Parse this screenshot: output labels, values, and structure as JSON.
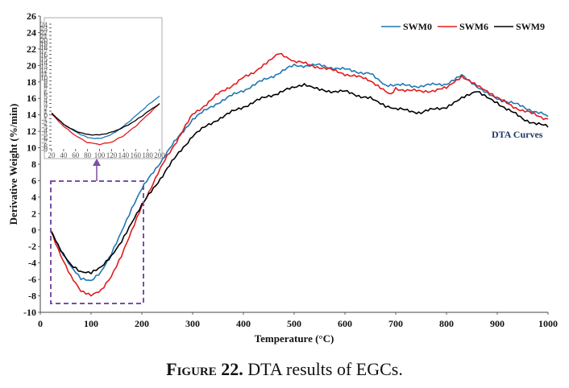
{
  "caption": {
    "figure_label": "Figure 22.",
    "text": " DTA results of EGCs."
  },
  "colors": {
    "SWM0": "#1f77b4",
    "SWM6": "#e31a1c",
    "SWM9": "#000000",
    "box": "#7b4fa6"
  },
  "chart_data": [
    {
      "type": "line",
      "title": "",
      "xlabel": "Temperature (°C)",
      "ylabel": "Derivative Weight (%/min)",
      "xlim": [
        0,
        1000
      ],
      "ylim": [
        -10,
        26
      ],
      "xticks": [
        "0",
        "100",
        "200",
        "300",
        "400",
        "500",
        "600",
        "700",
        "800",
        "900",
        "1000"
      ],
      "yticks": [
        "-10",
        "-8",
        "-6",
        "-4",
        "-2",
        "0",
        "2",
        "4",
        "6",
        "8",
        "10",
        "12",
        "14",
        "16",
        "18",
        "20",
        "22",
        "24",
        "26"
      ],
      "legend": [
        "SWM0",
        "SWM6",
        "SWM9"
      ],
      "legend_position": "top-right",
      "annotation": "DTA Curves",
      "grid": false,
      "series": [
        {
          "name": "SWM0",
          "x": [
            20,
            40,
            60,
            80,
            100,
            120,
            140,
            160,
            180,
            200,
            250,
            300,
            350,
            400,
            450,
            500,
            550,
            600,
            650,
            680,
            700,
            750,
            800,
            830,
            860,
            900,
            950,
            1000
          ],
          "y": [
            0,
            -2.5,
            -4.5,
            -6.0,
            -6.3,
            -5.2,
            -3.0,
            -0.3,
            2.5,
            5.0,
            9.5,
            13.5,
            15.5,
            17.0,
            18.5,
            20.0,
            20.0,
            19.5,
            19.0,
            17.5,
            17.6,
            17.5,
            17.8,
            19.0,
            17.5,
            16.0,
            15.0,
            13.8
          ]
        },
        {
          "name": "SWM6",
          "x": [
            20,
            40,
            60,
            80,
            100,
            120,
            140,
            160,
            180,
            200,
            250,
            300,
            350,
            400,
            420,
            450,
            470,
            500,
            550,
            600,
            650,
            690,
            700,
            750,
            800,
            830,
            860,
            900,
            950,
            1000
          ],
          "y": [
            0,
            -3.0,
            -5.5,
            -7.3,
            -7.8,
            -7.2,
            -5.5,
            -3.0,
            0,
            3.0,
            9.0,
            14.0,
            16.5,
            18.5,
            19.0,
            20.5,
            21.5,
            20.5,
            19.8,
            19.0,
            18.2,
            16.5,
            17.2,
            16.8,
            17.2,
            18.5,
            17.5,
            16.0,
            14.5,
            13.5
          ]
        },
        {
          "name": "SWM9",
          "x": [
            20,
            40,
            60,
            80,
            100,
            120,
            140,
            160,
            180,
            200,
            250,
            300,
            350,
            400,
            450,
            500,
            520,
            550,
            600,
            650,
            680,
            700,
            750,
            800,
            830,
            860,
            900,
            950,
            1000
          ],
          "y": [
            0,
            -2.5,
            -4.3,
            -5.2,
            -5.3,
            -4.6,
            -3.3,
            -1.5,
            0.8,
            3.0,
            7.5,
            11.5,
            13.5,
            15.0,
            16.3,
            17.3,
            17.6,
            17.0,
            16.8,
            16.0,
            15.0,
            14.7,
            14.3,
            15.0,
            16.2,
            17.0,
            15.5,
            13.5,
            12.5
          ]
        }
      ]
    },
    {
      "type": "line",
      "title": "",
      "xlabel": "",
      "ylabel": "",
      "xlim": [
        20,
        200
      ],
      "ylim": [
        -9,
        24
      ],
      "xticks": [
        "20",
        "40",
        "60",
        "80",
        "100",
        "120",
        "140",
        "160",
        "180",
        "200"
      ],
      "yticks": [
        "-9",
        "-8",
        "-7",
        "-6",
        "-5",
        "-4",
        "-3",
        "-2",
        "-1",
        "0",
        "1",
        "2",
        "3",
        "4",
        "5",
        "6",
        "7",
        "8",
        "9",
        "10",
        "11",
        "12",
        "13",
        "14",
        "15",
        "16",
        "17",
        "18",
        "19",
        "20",
        "21",
        "22",
        "23",
        "24"
      ],
      "grid": false,
      "series": [
        {
          "name": "SWM0",
          "x": [
            20,
            40,
            60,
            80,
            100,
            120,
            140,
            160,
            180,
            200
          ],
          "y": [
            0.5,
            -2.5,
            -4.5,
            -6.0,
            -6.3,
            -5.2,
            -3.0,
            -0.3,
            2.5,
            5.0
          ]
        },
        {
          "name": "SWM6",
          "x": [
            20,
            40,
            60,
            80,
            100,
            120,
            140,
            160,
            180,
            200
          ],
          "y": [
            0.2,
            -3.0,
            -5.5,
            -7.3,
            -7.8,
            -7.2,
            -5.5,
            -3.0,
            0,
            3.0
          ]
        },
        {
          "name": "SWM9",
          "x": [
            20,
            40,
            60,
            80,
            100,
            120,
            140,
            160,
            180,
            200
          ],
          "y": [
            0.5,
            -2.5,
            -4.3,
            -5.2,
            -5.3,
            -4.6,
            -3.3,
            -1.5,
            0.8,
            3.0
          ]
        }
      ]
    }
  ]
}
